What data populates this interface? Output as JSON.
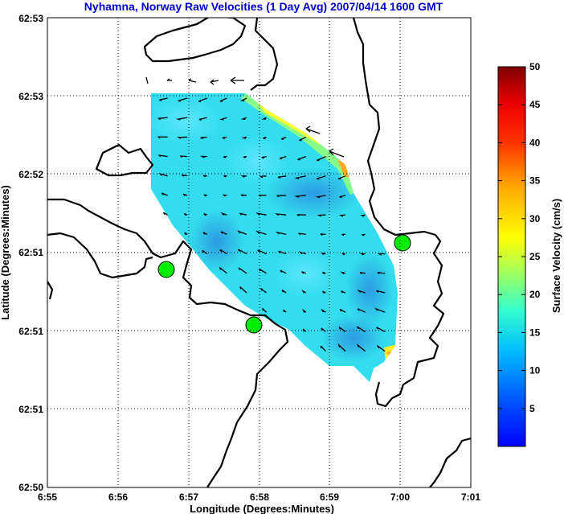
{
  "title": "Nyhamna, Norway Raw Velocities (1 Day Avg) 2007/04/14 1600 GMT",
  "xlabel": "Longitude (Degrees:Minutes)",
  "ylabel": "Latitude (Degrees:Minutes)",
  "xticks": [
    "6:55",
    "6:56",
    "6:57",
    "6:58",
    "6:59",
    "7:00",
    "7:01"
  ],
  "yticks": [
    "62:53",
    "62:53",
    "62:52",
    "62:51",
    "62:51",
    "62:51",
    "62:50"
  ],
  "colorbar": {
    "label": "Surface Velocity (cm/s)",
    "ticks": [
      "5",
      "10",
      "15",
      "20",
      "25",
      "30",
      "35",
      "40",
      "45",
      "50"
    ],
    "range": [
      0,
      50
    ],
    "colormap": "jet"
  },
  "stations": [
    {
      "name": "station-west",
      "lon_min": 56.7,
      "lat_frac": 0.28
    },
    {
      "name": "station-south",
      "lon_min": 57.9,
      "lat_frac": 0.18
    },
    {
      "name": "station-east",
      "lon_min": 60.0,
      "lat_frac": 0.31
    }
  ],
  "colors": {
    "title": "#0000cc",
    "coast": "#000000",
    "station": "#00ee00",
    "field_base": "#33ddee"
  }
}
